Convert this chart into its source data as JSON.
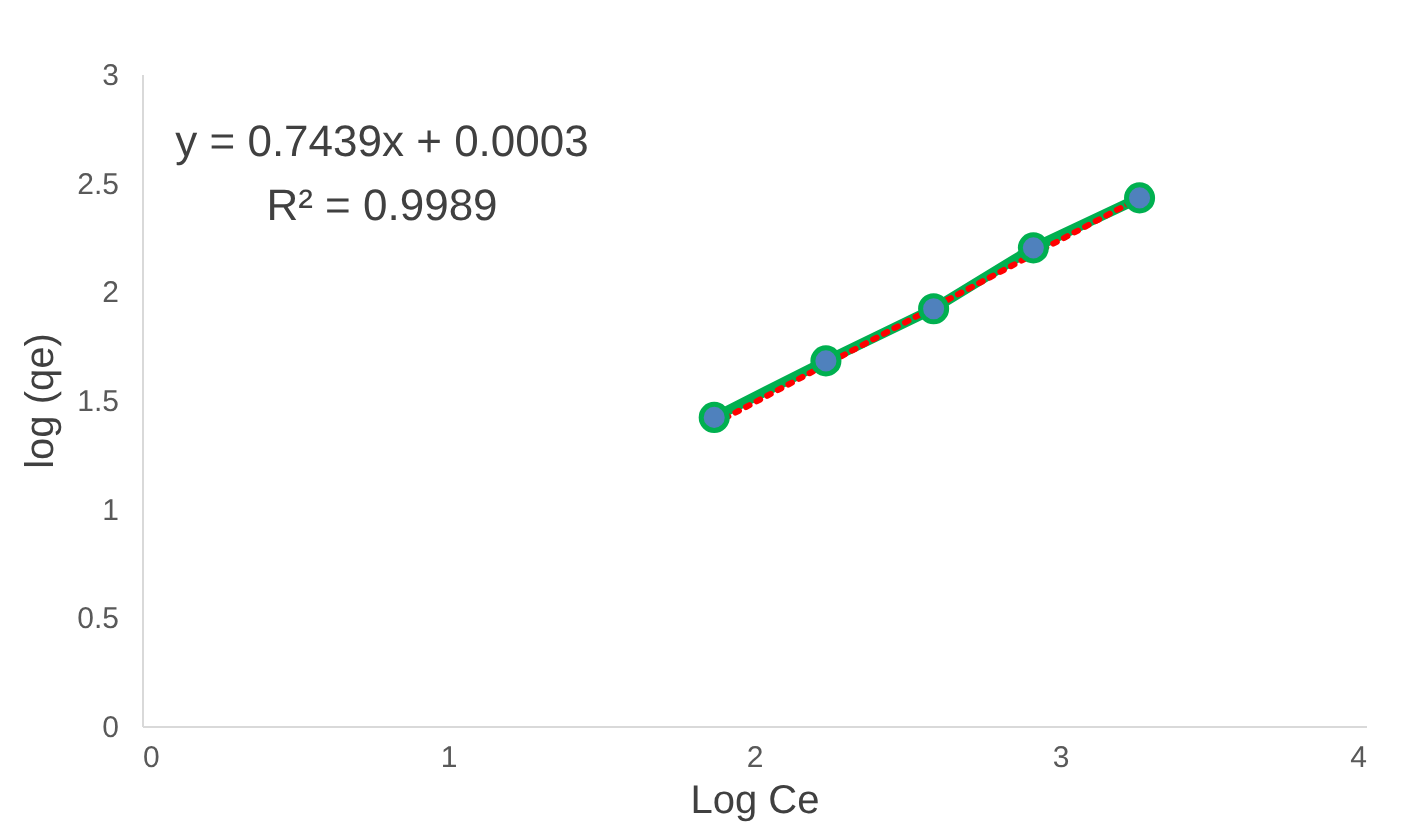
{
  "chart_data": {
    "type": "scatter",
    "xlabel": "Log Ce",
    "ylabel": "log (qe)",
    "xlim": [
      0,
      4
    ],
    "xticks": [
      0,
      1,
      2,
      3,
      4
    ],
    "ylim": [
      0,
      3
    ],
    "yticks": [
      0,
      0.5,
      1,
      1.5,
      2,
      2.5,
      3
    ],
    "grid": false,
    "series": [
      {
        "type": "line",
        "color": "#00b050",
        "line_style": "solid",
        "x": [
          1.87,
          2.235,
          2.587,
          2.913,
          3.26
        ],
        "values": [
          1.42,
          1.68,
          1.92,
          2.2,
          2.43
        ]
      },
      {
        "type": "line",
        "color": "#ff0000",
        "line_style": "dotted",
        "x": [
          1.87,
          3.26
        ],
        "values": [
          1.39,
          2.43
        ]
      },
      {
        "color": "#4f81bd",
        "marker": "circle",
        "x": [
          1.87,
          2.235,
          2.587,
          2.913,
          3.26
        ],
        "values": [
          1.42,
          1.68,
          1.92,
          2.2,
          2.43
        ]
      }
    ],
    "annotations": [
      "y = 0.7439x + 0.0003",
      "R² = 0.9989"
    ]
  }
}
